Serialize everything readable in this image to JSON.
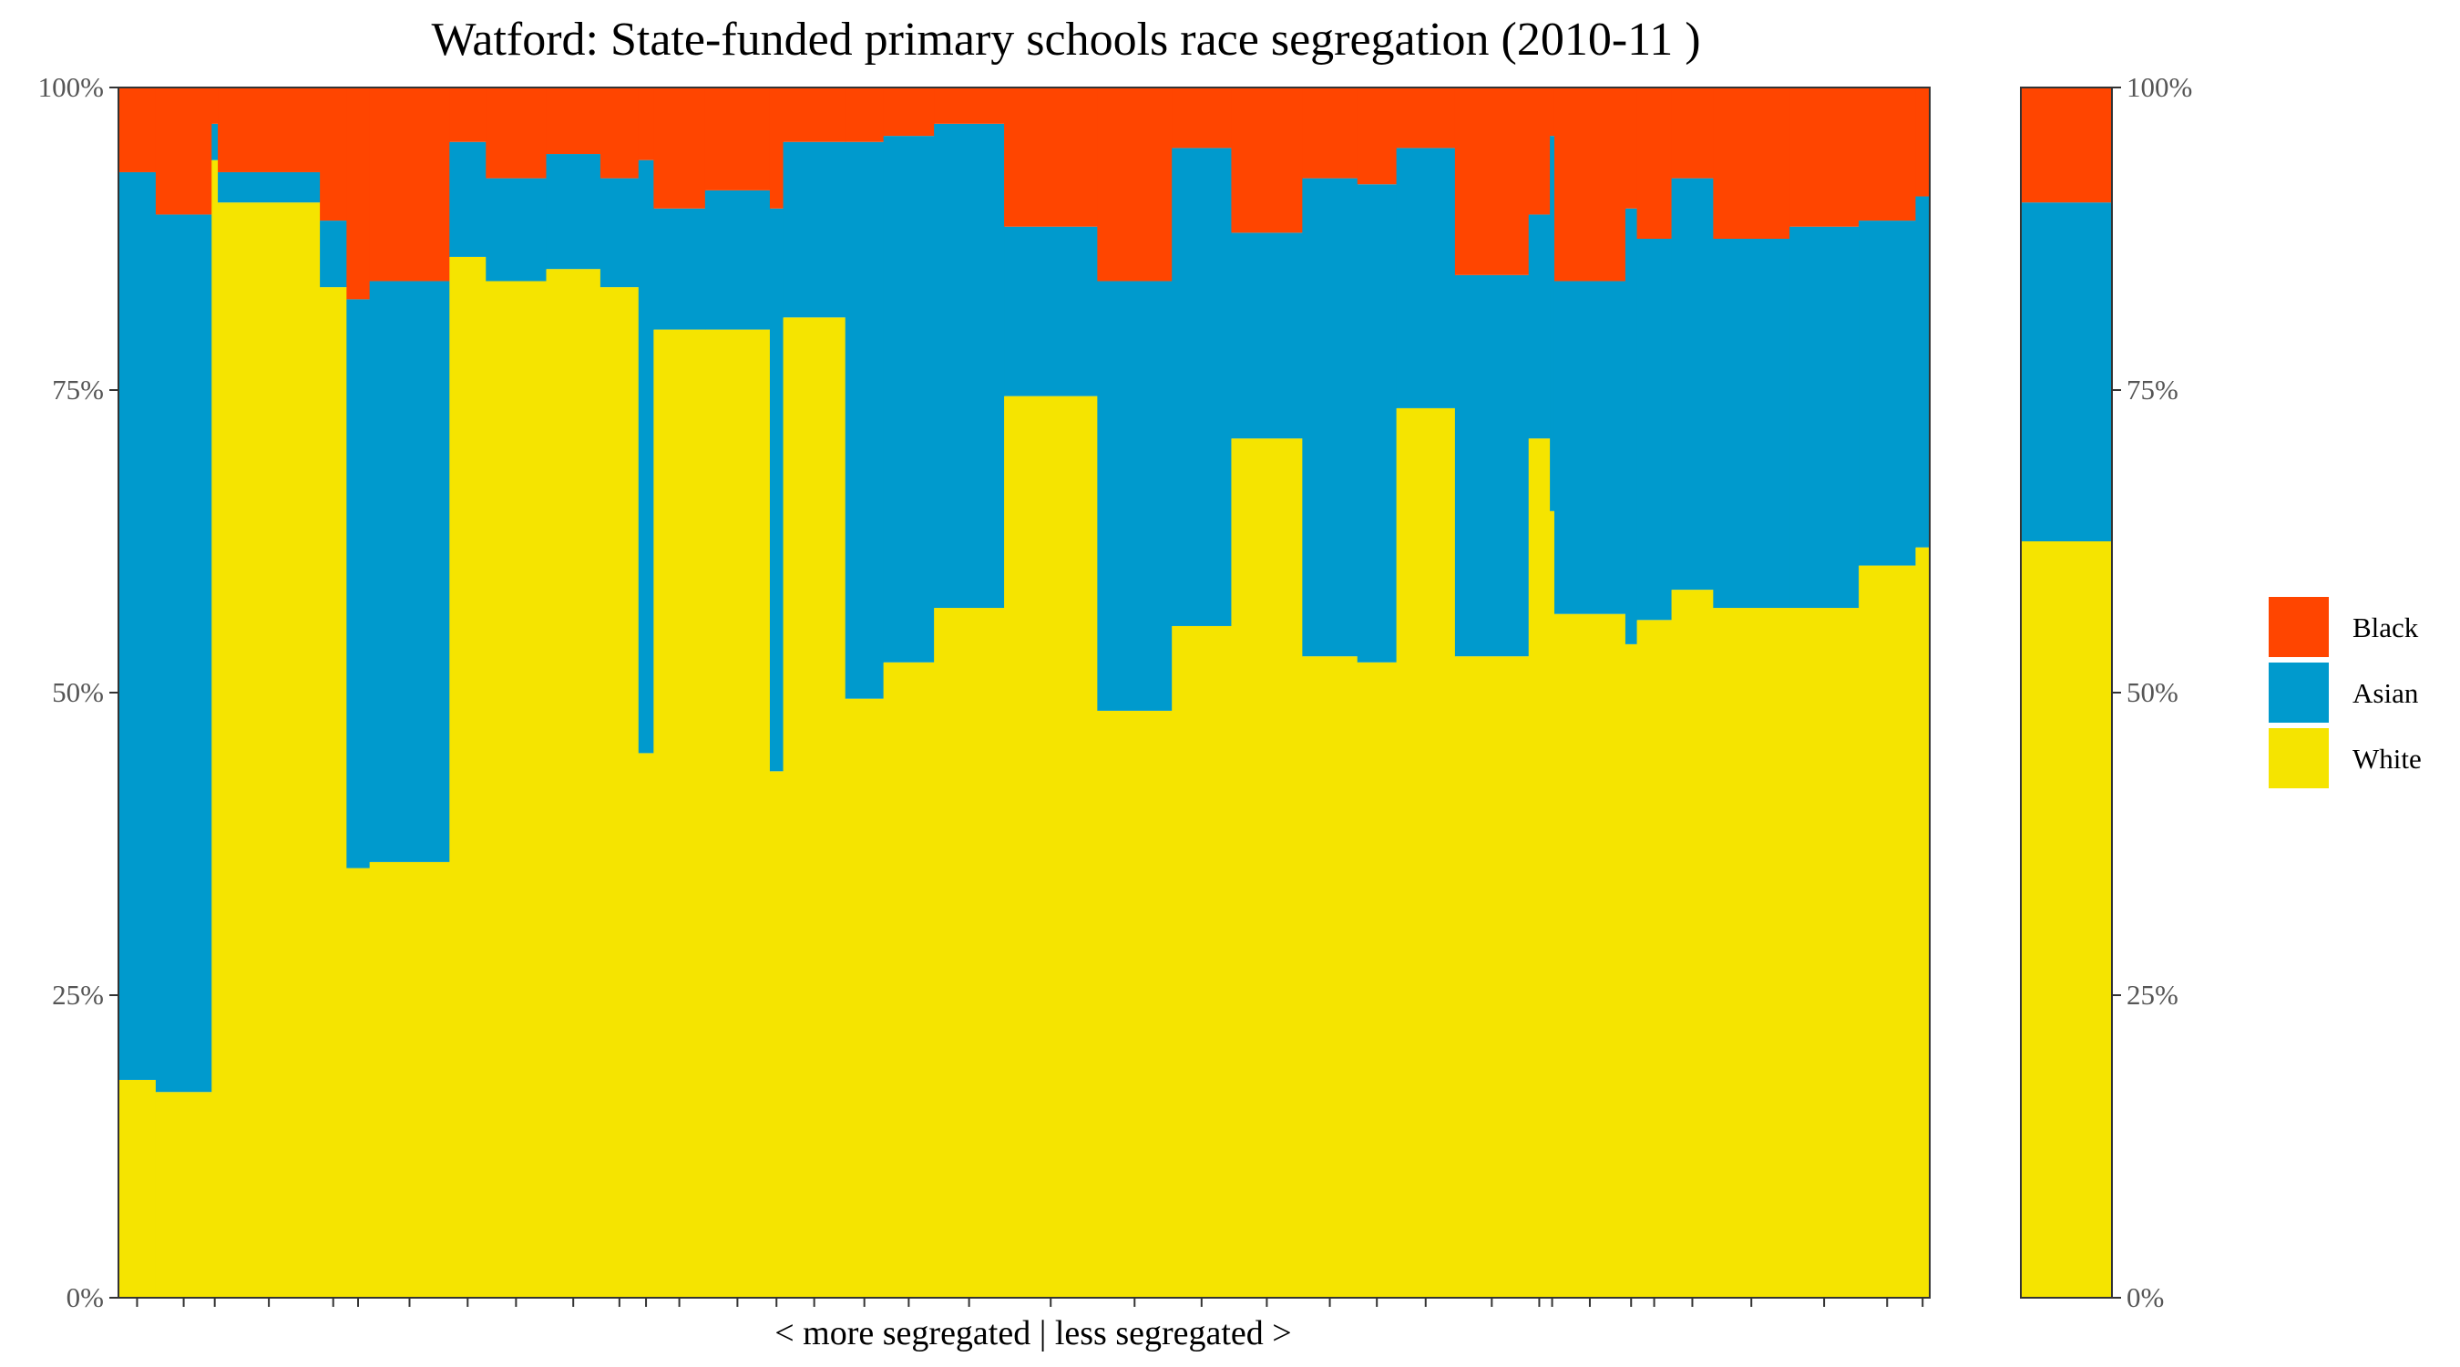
{
  "chart_data": {
    "type": "bar",
    "stacked": true,
    "variable_width": true,
    "title": "Watford: State-funded primary schools race segregation (2010-11 )",
    "xlabel": "< more segregated | less segregated >",
    "ylabel": "",
    "ylim": [
      0,
      100
    ],
    "y_ticks": [
      "0%",
      "25%",
      "50%",
      "75%",
      "100%"
    ],
    "grid": false,
    "legend_position": "right",
    "series_order": [
      "White",
      "Asian",
      "Black"
    ],
    "legend": [
      {
        "name": "Black",
        "color": "#ff4500"
      },
      {
        "name": "Asian",
        "color": "#009acd"
      },
      {
        "name": "White",
        "color": "#f5e400"
      }
    ],
    "schools": [
      {
        "weight": 4.2,
        "white": 18,
        "asian": 75,
        "black": 7
      },
      {
        "weight": 6.3,
        "white": 17,
        "asian": 72.5,
        "black": 10.5
      },
      {
        "weight": 0.7,
        "white": 94,
        "asian": 3,
        "black": 3
      },
      {
        "weight": 11.5,
        "white": 90.5,
        "asian": 2.5,
        "black": 7
      },
      {
        "weight": 3.0,
        "white": 83.5,
        "asian": 5.5,
        "black": 11
      },
      {
        "weight": 2.6,
        "white": 35.5,
        "asian": 47,
        "black": 17.5
      },
      {
        "weight": 9.0,
        "white": 36,
        "asian": 48,
        "black": 16
      },
      {
        "weight": 4.1,
        "white": 86,
        "asian": 9.5,
        "black": 4.5
      },
      {
        "weight": 6.8,
        "white": 84,
        "asian": 8.5,
        "black": 7.5
      },
      {
        "weight": 6.1,
        "white": 85,
        "asian": 9.5,
        "black": 5.5
      },
      {
        "weight": 4.3,
        "white": 83.5,
        "asian": 9,
        "black": 7.5
      },
      {
        "weight": 1.7,
        "white": 45,
        "asian": 49,
        "black": 6
      },
      {
        "weight": 5.8,
        "white": 80,
        "asian": 10,
        "black": 10
      },
      {
        "weight": 7.3,
        "white": 80,
        "asian": 11.5,
        "black": 8.5
      },
      {
        "weight": 1.5,
        "white": 43.5,
        "asian": 46.5,
        "black": 10
      },
      {
        "weight": 7.0,
        "white": 81,
        "asian": 14.5,
        "black": 4.5
      },
      {
        "weight": 4.3,
        "white": 49.5,
        "asian": 46,
        "black": 4.5
      },
      {
        "weight": 5.7,
        "white": 52.5,
        "asian": 43.5,
        "black": 4
      },
      {
        "weight": 7.9,
        "white": 57,
        "asian": 40,
        "black": 3
      },
      {
        "weight": 10.5,
        "white": 74.5,
        "asian": 14,
        "black": 11.5
      },
      {
        "weight": 8.4,
        "white": 48.5,
        "asian": 35.5,
        "black": 16
      },
      {
        "weight": 6.7,
        "white": 55.5,
        "asian": 39.5,
        "black": 5
      },
      {
        "weight": 8.0,
        "white": 71,
        "asian": 17,
        "black": 12
      },
      {
        "weight": 6.2,
        "white": 53,
        "asian": 39.5,
        "black": 7.5
      },
      {
        "weight": 4.4,
        "white": 52.5,
        "asian": 39.5,
        "black": 8
      },
      {
        "weight": 6.6,
        "white": 73.5,
        "asian": 21.5,
        "black": 5
      },
      {
        "weight": 8.3,
        "white": 53,
        "asian": 31.5,
        "black": 15.5
      },
      {
        "weight": 2.4,
        "white": 71,
        "asian": 18.5,
        "black": 10.5
      },
      {
        "weight": 0.5,
        "white": 65,
        "asian": 31,
        "black": 4
      },
      {
        "weight": 8.0,
        "white": 56.5,
        "asian": 27.5,
        "black": 16
      },
      {
        "weight": 1.3,
        "white": 54,
        "asian": 36,
        "black": 10
      },
      {
        "weight": 3.9,
        "white": 56,
        "asian": 31.5,
        "black": 12.5
      },
      {
        "weight": 4.7,
        "white": 58.5,
        "asian": 34,
        "black": 7.5
      },
      {
        "weight": 8.6,
        "white": 57,
        "asian": 30.5,
        "black": 12.5
      },
      {
        "weight": 7.8,
        "white": 57,
        "asian": 31.5,
        "black": 11.5
      },
      {
        "weight": 6.4,
        "white": 60.5,
        "asian": 28.5,
        "black": 11
      },
      {
        "weight": 1.6,
        "white": 62,
        "asian": 29,
        "black": 9
      }
    ],
    "overall": {
      "white": 62.5,
      "asian": 28,
      "black": 9.5
    }
  }
}
